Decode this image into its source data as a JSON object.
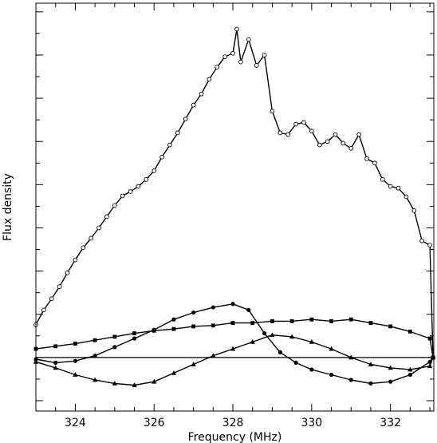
{
  "chart_data": {
    "type": "line",
    "title": "",
    "xlabel": "Frequency (MHz)",
    "ylabel": "Flux density",
    "xlim": [
      323.0,
      333.1
    ],
    "ylim": [
      -0.62,
      4.1
    ],
    "x_ticks": [
      324,
      326,
      328,
      330,
      332
    ],
    "x_tick_labels": [
      "324",
      "326",
      "328",
      "330",
      "332"
    ],
    "y_ticks": [
      -0.5,
      0,
      0.5,
      1,
      1.5,
      2,
      2.5,
      3,
      3.5,
      4
    ],
    "y_tick_labels": [],
    "zero_line": 0,
    "grid": false,
    "legend": "none",
    "series": [
      {
        "marker": "circle-open",
        "x": [
          323.0,
          323.2,
          323.4,
          323.6,
          323.8,
          324.0,
          324.2,
          324.4,
          324.6,
          324.8,
          325.0,
          325.2,
          325.4,
          325.6,
          325.8,
          326.0,
          326.2,
          326.4,
          326.6,
          326.8,
          327.0,
          327.2,
          327.4,
          327.6,
          327.8,
          328.0,
          328.1,
          328.2,
          328.4,
          328.6,
          328.8,
          329.0,
          329.2,
          329.4,
          329.6,
          329.8,
          330.0,
          330.2,
          330.4,
          330.6,
          330.8,
          331.0,
          331.2,
          331.4,
          331.6,
          331.8,
          332.0,
          332.2,
          332.4,
          332.6,
          332.8,
          333.0,
          333.08
        ],
        "y": [
          0.38,
          0.55,
          0.68,
          0.82,
          0.98,
          1.13,
          1.27,
          1.38,
          1.5,
          1.63,
          1.76,
          1.87,
          1.92,
          1.98,
          2.06,
          2.16,
          2.32,
          2.46,
          2.6,
          2.76,
          2.92,
          3.05,
          3.22,
          3.36,
          3.48,
          3.52,
          3.8,
          3.42,
          3.68,
          3.38,
          3.5,
          2.85,
          2.6,
          2.58,
          2.7,
          2.72,
          2.62,
          2.46,
          2.5,
          2.58,
          2.48,
          2.42,
          2.58,
          2.3,
          2.25,
          2.06,
          1.98,
          1.96,
          1.86,
          1.7,
          1.35,
          1.3,
          0.0
        ]
      },
      {
        "marker": "circle-filled",
        "x": [
          323.0,
          323.5,
          324.0,
          324.5,
          325.0,
          325.5,
          326.0,
          326.5,
          327.0,
          327.5,
          328.0,
          328.4,
          328.8,
          329.2,
          329.6,
          330.0,
          330.5,
          331.0,
          331.5,
          332.0,
          332.5,
          333.0,
          333.08
        ],
        "y": [
          -0.02,
          -0.06,
          -0.04,
          0.02,
          0.12,
          0.22,
          0.32,
          0.44,
          0.52,
          0.58,
          0.62,
          0.55,
          0.28,
          0.06,
          -0.06,
          -0.14,
          -0.2,
          -0.26,
          -0.3,
          -0.28,
          -0.2,
          -0.05,
          0.0
        ]
      },
      {
        "marker": "square-filled",
        "x": [
          323.0,
          323.5,
          324.0,
          324.5,
          325.0,
          325.5,
          326.0,
          326.5,
          327.0,
          327.5,
          328.0,
          328.5,
          329.0,
          329.5,
          330.0,
          330.5,
          331.0,
          331.5,
          332.0,
          332.5,
          333.0,
          333.08
        ],
        "y": [
          0.1,
          0.13,
          0.16,
          0.2,
          0.24,
          0.28,
          0.31,
          0.33,
          0.36,
          0.37,
          0.4,
          0.4,
          0.42,
          0.42,
          0.44,
          0.42,
          0.44,
          0.4,
          0.36,
          0.3,
          0.22,
          0.0
        ]
      },
      {
        "marker": "triangle-filled",
        "x": [
          323.0,
          323.5,
          324.0,
          324.5,
          325.0,
          325.5,
          326.0,
          326.5,
          327.0,
          327.5,
          328.0,
          328.5,
          329.0,
          329.5,
          330.0,
          330.5,
          331.0,
          331.5,
          332.0,
          332.5,
          333.0,
          333.08
        ],
        "y": [
          -0.05,
          -0.12,
          -0.2,
          -0.26,
          -0.3,
          -0.32,
          -0.28,
          -0.18,
          -0.08,
          0.02,
          0.1,
          0.18,
          0.26,
          0.24,
          0.18,
          0.1,
          0.0,
          -0.08,
          -0.12,
          -0.14,
          -0.1,
          0.0
        ]
      }
    ]
  }
}
